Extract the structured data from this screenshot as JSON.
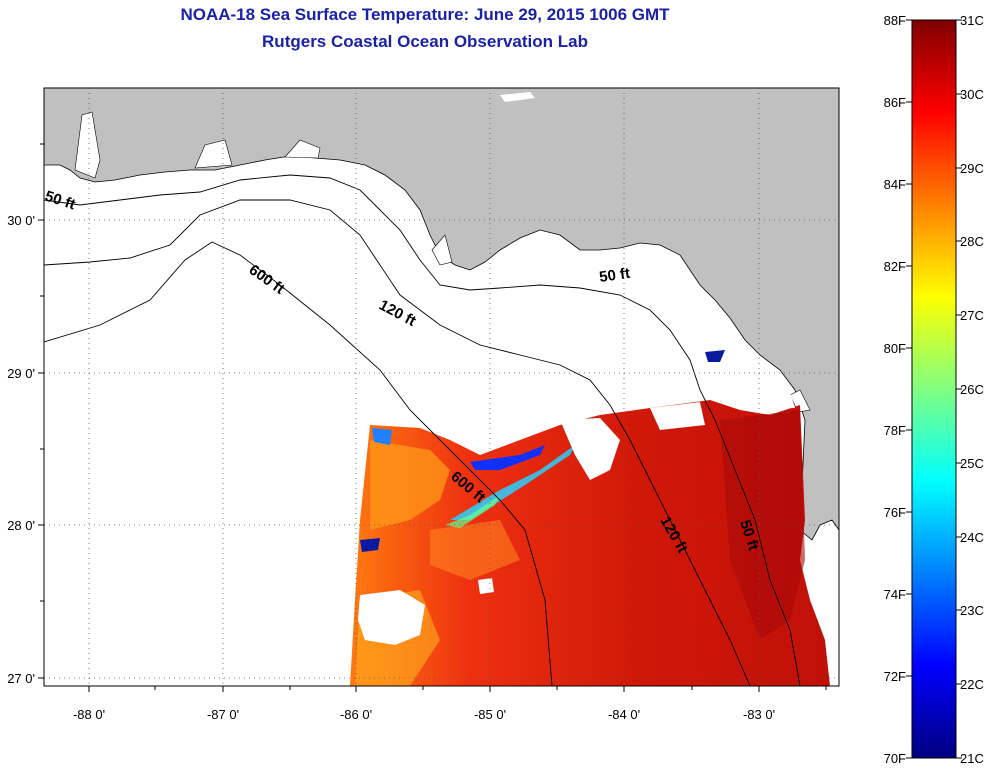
{
  "header": {
    "title": "NOAA-18 Sea Surface Temperature:  June 29, 2015 1006 GMT",
    "subtitle": "Rutgers Coastal Ocean Observation Lab"
  },
  "map": {
    "lon_labels": [
      "-88 0'",
      "-87 0'",
      "-86 0'",
      "-85 0'",
      "-84 0'",
      "-83 0'"
    ],
    "lat_labels": [
      "30 0'",
      "29 0'",
      "28 0'",
      "27 0'"
    ],
    "contours": [
      "50 ft",
      "600 ft",
      "120 ft",
      "50 ft",
      "600 ft",
      "120 ft",
      "50 ft"
    ]
  },
  "colorbar": {
    "fahrenheit": [
      "88F",
      "86F",
      "84F",
      "82F",
      "80F",
      "78F",
      "76F",
      "74F",
      "72F",
      "70F"
    ],
    "celsius": [
      "31C",
      "30C",
      "29C",
      "28C",
      "27C",
      "26C",
      "25C",
      "24C",
      "23C",
      "22C",
      "21C"
    ],
    "colors": [
      "#00007f",
      "#0000ff",
      "#0080ff",
      "#00ffff",
      "#80ff80",
      "#ffff00",
      "#ff8000",
      "#ff0000",
      "#7f0000"
    ]
  }
}
